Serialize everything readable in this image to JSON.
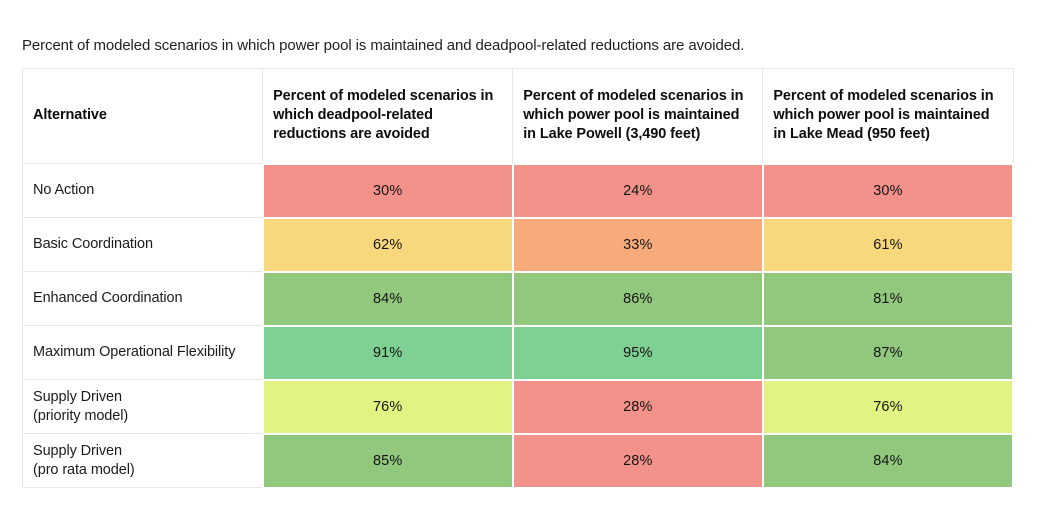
{
  "figure": {
    "title": "Percent of modeled scenarios in which power pool is maintained and deadpool-related reductions are avoided."
  },
  "colors": {
    "red": "#f2928a",
    "orange": "#f7ab7b",
    "yellow": "#f8d87c",
    "chartreuse": "#e1f382",
    "green": "#92c87d",
    "teal": "#7fd093"
  },
  "table": {
    "columns": [
      "Alternative",
      "Percent of modeled scenarios in which deadpool-related reductions are avoided",
      "Percent of modeled scenarios in which power pool is maintained in Lake Powell (3,490 feet)",
      "Percent of modeled scenarios in which power pool is maintained in Lake Mead (950 feet)"
    ],
    "rows": [
      {
        "label": "No Action",
        "sublabel": "",
        "values": [
          "30%",
          "24%",
          "30%"
        ],
        "colors": [
          "red",
          "red",
          "red"
        ]
      },
      {
        "label": "Basic Coordination",
        "sublabel": "",
        "values": [
          "62%",
          "33%",
          "61%"
        ],
        "colors": [
          "yellow",
          "orange",
          "yellow"
        ]
      },
      {
        "label": "Enhanced Coordination",
        "sublabel": "",
        "values": [
          "84%",
          "86%",
          "81%"
        ],
        "colors": [
          "green",
          "green",
          "green"
        ]
      },
      {
        "label": "Maximum Operational Flexibility",
        "sublabel": "",
        "values": [
          "91%",
          "95%",
          "87%"
        ],
        "colors": [
          "teal",
          "teal",
          "green"
        ]
      },
      {
        "label": "Supply Driven",
        "sublabel": "(priority model)",
        "values": [
          "76%",
          "28%",
          "76%"
        ],
        "colors": [
          "chartreuse",
          "red",
          "chartreuse"
        ]
      },
      {
        "label": "Supply Driven",
        "sublabel": "(pro rata model)",
        "values": [
          "85%",
          "28%",
          "84%"
        ],
        "colors": [
          "green",
          "red",
          "green"
        ]
      }
    ]
  },
  "chart_data": {
    "type": "table",
    "title": "Percent of modeled scenarios in which power pool is maintained and deadpool-related reductions are avoided.",
    "categories": [
      "No Action",
      "Basic Coordination",
      "Enhanced Coordination",
      "Maximum Operational Flexibility",
      "Supply Driven (priority model)",
      "Supply Driven (pro rata model)"
    ],
    "series": [
      {
        "name": "Percent of modeled scenarios in which deadpool-related reductions are avoided",
        "values": [
          30,
          62,
          84,
          91,
          76,
          85
        ]
      },
      {
        "name": "Percent of modeled scenarios in which power pool is maintained in Lake Powell (3,490 feet)",
        "values": [
          24,
          33,
          86,
          95,
          28,
          28
        ]
      },
      {
        "name": "Percent of modeled scenarios in which power pool is maintained in Lake Mead (950 feet)",
        "values": [
          30,
          61,
          81,
          87,
          76,
          84
        ]
      }
    ],
    "value_unit": "%",
    "cell_color_scale": "red=low performance, yellow/orange=medium, green/teal=high"
  }
}
